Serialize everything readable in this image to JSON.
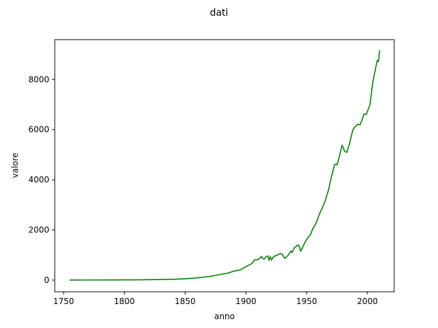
{
  "chart_data": {
    "type": "line",
    "title": "dati",
    "x_label": "anno",
    "y_label": "valore",
    "x": [
      1755,
      1770,
      1790,
      1800,
      1810,
      1825,
      1840,
      1850,
      1860,
      1870,
      1875,
      1880,
      1885,
      1890,
      1895,
      1900,
      1905,
      1907,
      1910,
      1913,
      1914,
      1915,
      1917,
      1918,
      1919,
      1920,
      1921,
      1923,
      1925,
      1927,
      1929,
      1930,
      1932,
      1935,
      1937,
      1938,
      1940,
      1943,
      1944,
      1945,
      1946,
      1948,
      1950,
      1953,
      1955,
      1958,
      1960,
      1963,
      1965,
      1968,
      1970,
      1973,
      1974,
      1975,
      1977,
      1979,
      1980,
      1981,
      1983,
      1985,
      1988,
      1990,
      1992,
      1994,
      1996,
      1997,
      1999,
      2000,
      2002,
      2004,
      2005,
      2007,
      2008,
      2009,
      2010
    ],
    "series": [
      {
        "name": "valore",
        "color": "#008000",
        "values": [
          3,
          4,
          6,
          8,
          10,
          20,
          33,
          54,
          91,
          147,
          188,
          236,
          277,
          356,
          400,
          534,
          663,
          800,
          819,
          943,
          850,
          836,
          950,
          962,
          806,
          932,
          803,
          950,
          975,
          1040,
          1053,
          1016,
          864,
          1004,
          1156,
          1100,
          1299,
          1395,
          1350,
          1160,
          1238,
          1450,
          1630,
          1800,
          2049,
          2300,
          2577,
          2900,
          3130,
          3600,
          4053,
          4614,
          4620,
          4596,
          4950,
          5369,
          5299,
          5150,
          5091,
          5400,
          6000,
          6128,
          6211,
          6200,
          6450,
          6620,
          6610,
          6735,
          6977,
          7743,
          8049,
          8520,
          8749,
          8717,
          9167
        ]
      }
    ],
    "xlim": [
      1742.7,
      2022
    ],
    "ylim": [
      -466,
      9589
    ],
    "xticks": [
      1750,
      1800,
      1850,
      1900,
      1950,
      2000
    ],
    "yticks": [
      0,
      2000,
      4000,
      6000,
      8000
    ]
  }
}
